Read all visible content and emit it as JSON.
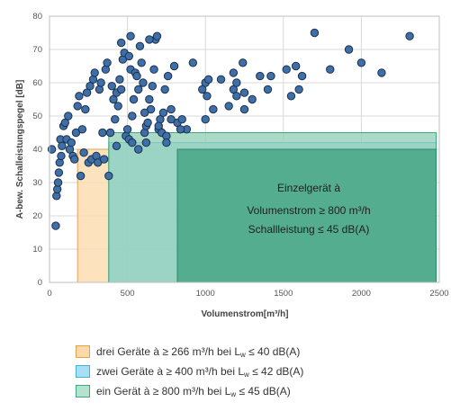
{
  "chart_data": {
    "type": "scatter",
    "xlabel": "Volumenstrom[m³/h]",
    "ylabel": "A-bew. Schalleistungspegel [dB]",
    "xlim": [
      0,
      2500
    ],
    "ylim": [
      0,
      80
    ],
    "x_ticks": [
      "0",
      "500",
      "1000",
      "1500",
      "2000",
      "2500"
    ],
    "y_ticks": [
      "0",
      "10",
      "20",
      "30",
      "40",
      "50",
      "60",
      "70",
      "80"
    ],
    "grid": true,
    "point_color": "#3f6fa8",
    "point_edge_color": "#1c2f4a",
    "points": [
      [
        15,
        40
      ],
      [
        40,
        17
      ],
      [
        45,
        26
      ],
      [
        50,
        28
      ],
      [
        55,
        30
      ],
      [
        60,
        33
      ],
      [
        65,
        36
      ],
      [
        70,
        43
      ],
      [
        75,
        38
      ],
      [
        80,
        41
      ],
      [
        90,
        47
      ],
      [
        100,
        48
      ],
      [
        110,
        43
      ],
      [
        120,
        50
      ],
      [
        130,
        40
      ],
      [
        140,
        42
      ],
      [
        150,
        38
      ],
      [
        160,
        37
      ],
      [
        170,
        45
      ],
      [
        180,
        53
      ],
      [
        190,
        56
      ],
      [
        200,
        32
      ],
      [
        210,
        46
      ],
      [
        220,
        39
      ],
      [
        230,
        52
      ],
      [
        240,
        57
      ],
      [
        250,
        36
      ],
      [
        260,
        59
      ],
      [
        270,
        37
      ],
      [
        280,
        61
      ],
      [
        290,
        63
      ],
      [
        300,
        38
      ],
      [
        310,
        36
      ],
      [
        320,
        58
      ],
      [
        330,
        60
      ],
      [
        340,
        45
      ],
      [
        350,
        37
      ],
      [
        360,
        64
      ],
      [
        370,
        66
      ],
      [
        380,
        32
      ],
      [
        390,
        45
      ],
      [
        400,
        59
      ],
      [
        410,
        55
      ],
      [
        420,
        49
      ],
      [
        430,
        57
      ],
      [
        440,
        53
      ],
      [
        450,
        61
      ],
      [
        460,
        58
      ],
      [
        470,
        67
      ],
      [
        480,
        69
      ],
      [
        490,
        44
      ],
      [
        500,
        46
      ],
      [
        510,
        43
      ],
      [
        520,
        64
      ],
      [
        530,
        50
      ],
      [
        540,
        55
      ],
      [
        550,
        63
      ],
      [
        560,
        62
      ],
      [
        570,
        58
      ],
      [
        580,
        71
      ],
      [
        590,
        66
      ],
      [
        600,
        60
      ],
      [
        610,
        45
      ],
      [
        620,
        47
      ],
      [
        630,
        48
      ],
      [
        640,
        55
      ],
      [
        650,
        52
      ],
      [
        660,
        59
      ],
      [
        670,
        64
      ],
      [
        680,
        73
      ],
      [
        690,
        74
      ],
      [
        700,
        46
      ],
      [
        710,
        49
      ],
      [
        720,
        45
      ],
      [
        730,
        51
      ],
      [
        740,
        58
      ],
      [
        750,
        44
      ],
      [
        760,
        62
      ],
      [
        780,
        52
      ],
      [
        800,
        65
      ],
      [
        820,
        48
      ],
      [
        850,
        49
      ],
      [
        880,
        46
      ],
      [
        920,
        66
      ],
      [
        980,
        58
      ],
      [
        1000,
        60
      ],
      [
        1010,
        56
      ],
      [
        1050,
        52
      ],
      [
        1100,
        61
      ],
      [
        1150,
        53
      ],
      [
        1180,
        58
      ],
      [
        1200,
        60
      ],
      [
        1240,
        66
      ],
      [
        1250,
        52
      ],
      [
        1300,
        55
      ],
      [
        1350,
        62
      ],
      [
        1400,
        58
      ],
      [
        1420,
        62
      ],
      [
        1600,
        58
      ],
      [
        1620,
        62
      ],
      [
        1700,
        75
      ],
      [
        1800,
        64
      ],
      [
        1920,
        70
      ],
      [
        2000,
        66
      ],
      [
        2130,
        63
      ],
      [
        2310,
        74
      ],
      [
        750,
        42
      ],
      [
        620,
        42
      ],
      [
        700,
        47
      ],
      [
        510,
        68
      ],
      [
        1020,
        61
      ],
      [
        1180,
        63
      ],
      [
        1250,
        57
      ],
      [
        1550,
        56
      ],
      [
        1520,
        64
      ],
      [
        1000,
        49
      ],
      [
        570,
        40
      ],
      [
        530,
        42
      ],
      [
        430,
        41
      ],
      [
        610,
        51
      ],
      [
        780,
        49
      ],
      [
        840,
        46
      ],
      [
        460,
        72
      ],
      [
        520,
        74
      ],
      [
        640,
        73
      ],
      [
        1580,
        65
      ],
      [
        1200,
        56
      ]
    ],
    "regions": [
      {
        "label": "drei Geräte à ≥ 266 m³/h bei Lw ≤ 40 dB(A)",
        "x": [
          180,
          380
        ],
        "y": [
          0,
          40
        ],
        "fill": "#fbd9a8",
        "edge": "#e8a04a"
      },
      {
        "label": "zwei Geräte à ≥ 400 m³/h bei Lw ≤ 42 dB(A)",
        "x": [
          380,
          2480
        ],
        "y": [
          0,
          42
        ],
        "fill": "#a8dff2",
        "edge": "#3fb2dd"
      },
      {
        "label": "ein Gerät à ≥ 800 m³/h bei Lw ≤ 45 dB(A)",
        "x": [
          380,
          2480
        ],
        "y": [
          0,
          45
        ],
        "fill": "#8fcdb4",
        "edge": "#3ea880"
      },
      {
        "label": "",
        "x": [
          820,
          2480
        ],
        "y": [
          0,
          40
        ],
        "fill": "#3ea07e",
        "edge": "#2a8a66"
      }
    ],
    "annotations": [
      "Einzelgerät à",
      "Volumenstrom ≥ 800 m³/h",
      "Schallleistung ≤ 45 dB(A)"
    ],
    "legend": [
      {
        "pre": "drei Geräte à ≥ 266 m³/h bei L",
        "sub": "w",
        "post": " ≤ 40 dB(A)",
        "fill": "#fbd9a8",
        "edge": "#e8a04a"
      },
      {
        "pre": "zwei Geräte à ≥ 400 m³/h bei L",
        "sub": "w",
        "post": " ≤ 42 dB(A)",
        "fill": "#a8dff2",
        "edge": "#3fb2dd"
      },
      {
        "pre": "ein Gerät à ≥ 800 m³/h bei L",
        "sub": "w",
        "post": " ≤ 45 dB(A)",
        "fill": "#b4e2cf",
        "edge": "#3ea880"
      }
    ]
  }
}
